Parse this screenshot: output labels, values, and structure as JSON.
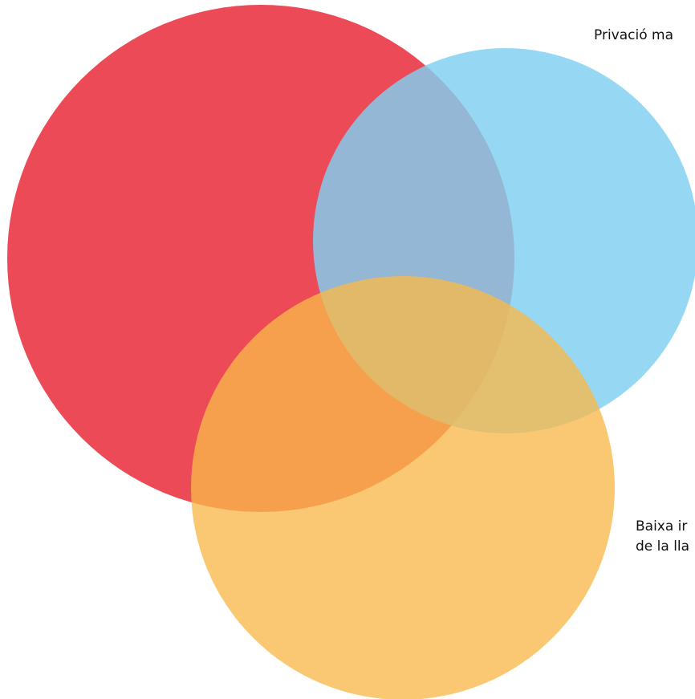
{
  "colors": {
    "red_circle": "#e8313f",
    "blue_circle": "#7fcff0",
    "orange_circle": "#f8b84a",
    "background": "#ffffff",
    "text": "#111111"
  },
  "labels": {
    "top_right": "Privació ma",
    "bottom_right_line1": "Baixa ir",
    "bottom_right_line2": "de la lla"
  }
}
